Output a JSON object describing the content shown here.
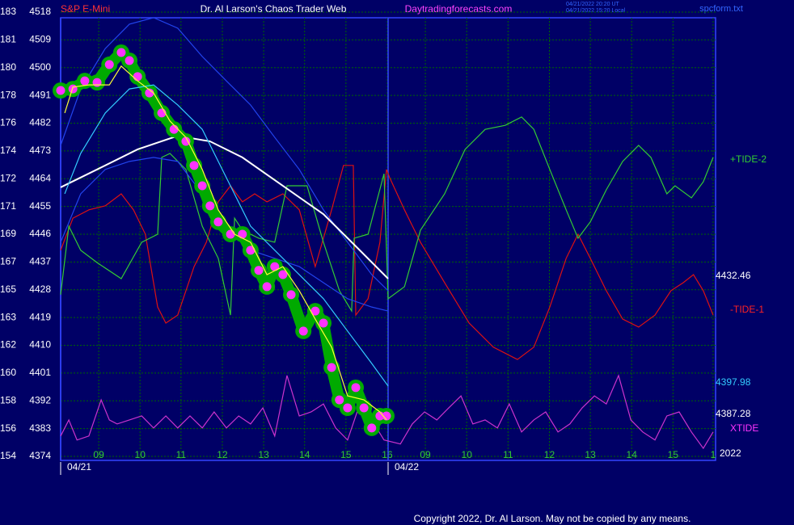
{
  "chart_data": {
    "type": "line",
    "title": "Dr. Al Larson's Chaos Trader Web",
    "instrument": "S&P E-Mini",
    "website": "Daytradingforecasts.com",
    "timestamps": [
      "04/21/2022 20:20 UT",
      "04/21/2022 15:20 Local"
    ],
    "file": "spcform.txt",
    "copyright": "Copyright 2022, Dr. Al Larson. May not be copied by any means.",
    "grid": true,
    "ylim": [
      4374,
      4518
    ],
    "yticks": [
      4374,
      4383,
      4392,
      4401,
      4410,
      4419,
      4428,
      4437,
      4446,
      4455,
      4464,
      4473,
      4482,
      4491,
      4500,
      4509,
      4518
    ],
    "y2lim": [
      154.3,
      183.3
    ],
    "y2ticks": [
      {
        "value": 154.3,
        "label": "154"
      },
      {
        "value": 156.11,
        "label": "156"
      },
      {
        "value": 157.93,
        "label": "158"
      },
      {
        "value": 159.74,
        "label": "160"
      },
      {
        "value": 161.55,
        "label": "162"
      },
      {
        "value": 163.36,
        "label": "163"
      },
      {
        "value": 165.18,
        "label": "165"
      },
      {
        "value": 166.99,
        "label": "167"
      },
      {
        "value": 168.8,
        "label": "169"
      },
      {
        "value": 170.61,
        "label": "171"
      },
      {
        "value": 172.43,
        "label": "172"
      },
      {
        "value": 174.24,
        "label": "174"
      },
      {
        "value": 176.05,
        "label": "176"
      },
      {
        "value": 177.86,
        "label": "178"
      },
      {
        "value": 179.68,
        "label": "180"
      },
      {
        "value": 181.49,
        "label": "181"
      },
      {
        "value": 183.3,
        "label": "183"
      }
    ],
    "xlim": [
      0,
      16
    ],
    "xticks": [
      {
        "value": 0.93,
        "label": "09"
      },
      {
        "value": 1.94,
        "label": "10"
      },
      {
        "value": 2.94,
        "label": "11"
      },
      {
        "value": 3.95,
        "label": "12"
      },
      {
        "value": 4.96,
        "label": "13"
      },
      {
        "value": 5.96,
        "label": "14"
      },
      {
        "value": 6.97,
        "label": "15"
      },
      {
        "value": 7.98,
        "label": "16"
      },
      {
        "value": 8.91,
        "label": "09"
      },
      {
        "value": 9.92,
        "label": "10"
      },
      {
        "value": 10.93,
        "label": "11"
      },
      {
        "value": 11.94,
        "label": "12"
      },
      {
        "value": 12.94,
        "label": "13"
      },
      {
        "value": 13.95,
        "label": "14"
      },
      {
        "value": 14.96,
        "label": "15"
      },
      {
        "value": 15.94,
        "label": "1"
      }
    ],
    "days": [
      {
        "value": 0,
        "label": "04/21"
      },
      {
        "value": 8,
        "label": "04/22"
      }
    ],
    "annotations": [
      {
        "text": "+TIDE-2",
        "color": "#33cc33"
      },
      {
        "text": "4432.46",
        "color": "#ffffff"
      },
      {
        "text": "-TIDE-1",
        "color": "#ff2222"
      },
      {
        "text": "4397.98",
        "color": "#33ccff"
      },
      {
        "text": "4387.28",
        "color": "#ffffff"
      },
      {
        "text": "XTIDE",
        "color": "#ff33ff"
      },
      {
        "text": "2022",
        "color": "#ffffff"
      }
    ],
    "series": [
      {
        "name": "XTIDE",
        "color": "#cc33cc",
        "x": [
          0,
          0.2,
          0.4,
          0.69,
          0.99,
          1.19,
          1.38,
          1.68,
          1.98,
          2.27,
          2.57,
          2.86,
          3.16,
          3.46,
          3.75,
          4.05,
          4.35,
          4.64,
          4.94,
          5.23,
          5.53,
          5.83,
          6.12,
          6.42,
          6.72,
          7.01,
          7.31,
          7.6,
          7.9,
          8.3,
          8.59,
          8.89,
          9.19,
          9.48,
          9.78,
          10.07,
          10.37,
          10.67,
          10.96,
          11.26,
          11.56,
          11.85,
          12.15,
          12.44,
          12.74,
          13.04,
          13.33,
          13.63,
          13.93,
          14.22,
          14.52,
          14.81,
          15.11,
          15.41,
          15.7,
          15.94
        ],
        "values": [
          4380.6,
          4385.8,
          4379.3,
          4380.6,
          4392.3,
          4385.8,
          4384.5,
          4385.8,
          4387.1,
          4383.2,
          4387.1,
          4383.2,
          4387.1,
          4383.2,
          4388.4,
          4383.2,
          4387.1,
          4384.5,
          4389.7,
          4380.6,
          4400.2,
          4387.1,
          4388.4,
          4391.0,
          4383.2,
          4379.3,
          4391.0,
          4385.8,
          4379.3,
          4378.0,
          4384.5,
          4388.4,
          4385.8,
          4389.7,
          4393.6,
          4384.5,
          4385.8,
          4383.2,
          4391.0,
          4381.9,
          4385.8,
          4388.4,
          4381.9,
          4384.5,
          4389.7,
          4393.6,
          4391.0,
          4400.2,
          4385.8,
          4381.9,
          4379.3,
          4387.1,
          4388.4,
          4381.9,
          4376.6,
          4381.9
        ]
      },
      {
        "name": "TIDE-1",
        "color": "#dd1111",
        "x": [
          0,
          0.3,
          0.69,
          1.09,
          1.48,
          1.78,
          2.07,
          2.37,
          2.57,
          2.86,
          3.26,
          3.56,
          3.85,
          4.15,
          4.44,
          4.74,
          5.04,
          5.43,
          5.83,
          6.22,
          6.62,
          6.91,
          7.15,
          7.21,
          7.51,
          7.8,
          7.96,
          8.04,
          8.4,
          8.79,
          9.38,
          9.98,
          10.57,
          11.16,
          11.56,
          11.95,
          12.35,
          12.64,
          12.94,
          13.33,
          13.73,
          14.12,
          14.52,
          14.91,
          15.21,
          15.46,
          15.7,
          15.94
        ],
        "values": [
          4440.8,
          4451.2,
          4453.9,
          4455.2,
          4459.1,
          4453.9,
          4446.0,
          4422.4,
          4417.2,
          4419.8,
          4435.5,
          4443.4,
          4456.5,
          4461.7,
          4456.5,
          4459.1,
          4456.5,
          4459.1,
          4453.9,
          4435.5,
          4453.9,
          4468.3,
          4468.3,
          4419.8,
          4425.1,
          4443.4,
          4467.0,
          4464.3,
          4453.9,
          4443.4,
          4430.3,
          4417.2,
          4409.4,
          4405.4,
          4409.4,
          4422.4,
          4438.2,
          4446.0,
          4438.2,
          4427.7,
          4418.5,
          4415.9,
          4419.8,
          4427.7,
          4430.3,
          4432.9,
          4427.7,
          4419.8
        ]
      },
      {
        "name": "TIDE-2",
        "color": "#33cc33",
        "x": [
          0,
          0.2,
          0.49,
          0.89,
          1.48,
          1.98,
          2.37,
          2.47,
          2.67,
          3.06,
          3.46,
          3.85,
          4.15,
          4.25,
          4.44,
          4.84,
          5.23,
          5.53,
          6.02,
          6.42,
          6.81,
          7.11,
          7.17,
          7.51,
          7.9,
          8.0,
          8.4,
          8.79,
          9.38,
          9.88,
          10.37,
          10.86,
          11.26,
          11.56,
          11.95,
          12.35,
          12.64,
          12.94,
          13.33,
          13.73,
          14.12,
          14.42,
          14.81,
          15.01,
          15.41,
          15.7,
          15.94
        ],
        "values": [
          4426.4,
          4448.6,
          4440.8,
          4436.8,
          4431.6,
          4443.4,
          4446.0,
          4470.9,
          4472.2,
          4467.0,
          4448.6,
          4438.2,
          4419.8,
          4451.2,
          4447.3,
          4444.7,
          4443.4,
          4461.7,
          4461.7,
          4443.4,
          4427.7,
          4421.1,
          4444.7,
          4446.0,
          4465.6,
          4425.1,
          4429.0,
          4447.3,
          4459.1,
          4473.5,
          4480.0,
          4481.3,
          4484.0,
          4480.0,
          4467.0,
          4453.9,
          4444.7,
          4450.0,
          4460.4,
          4469.6,
          4474.8,
          4470.9,
          4459.1,
          4461.7,
          4457.8,
          4463.0,
          4470.9
        ]
      },
      {
        "name": "Upper band",
        "color": "#2244ee",
        "x": [
          0,
          0.49,
          1.09,
          1.68,
          2.27,
          2.86,
          3.46,
          4.05,
          4.64,
          5.23,
          5.83,
          6.42,
          7.01,
          7.6,
          8.0
        ],
        "values": [
          4474.8,
          4493.1,
          4506.2,
          4514.1,
          4516.2,
          4512.8,
          4503.6,
          4495.7,
          4487.9,
          4477.4,
          4467.0,
          4453.9,
          4443.4,
          4432.9,
          4427.7
        ]
      },
      {
        "name": "Lower band",
        "color": "#2244ee",
        "x": [
          0,
          0.49,
          1.09,
          1.68,
          2.27,
          2.86,
          3.46,
          4.05,
          4.64,
          5.23,
          5.83,
          6.42,
          7.01,
          7.6,
          8.0
        ],
        "values": [
          4443.4,
          4459.1,
          4467.0,
          4469.6,
          4470.9,
          4469.6,
          4459.1,
          4448.6,
          4440.8,
          4438.2,
          4435.5,
          4430.3,
          4425.1,
          4422.4,
          4421.1
        ]
      },
      {
        "name": "Slow average",
        "color": "#ffffff",
        "x": [
          0,
          0.89,
          1.88,
          2.86,
          3.65,
          4.44,
          5.43,
          6.42,
          7.21,
          8.0
        ],
        "values": [
          4461.2,
          4467.0,
          4473.5,
          4477.9,
          4476.1,
          4470.9,
          4461.7,
          4452.5,
          4442.1,
          4431.6
        ]
      },
      {
        "name": "Price",
        "color": "#ff33ff",
        "glow": "#00aa00",
        "marker": true,
        "x": [
          0,
          0.3,
          0.59,
          0.89,
          1.19,
          1.48,
          1.68,
          1.88,
          2.17,
          2.47,
          2.77,
          3.06,
          3.26,
          3.46,
          3.65,
          3.85,
          4.15,
          4.44,
          4.64,
          4.84,
          5.04,
          5.23,
          5.43,
          5.63,
          5.93,
          6.22,
          6.42,
          6.62,
          6.81,
          7.01,
          7.21,
          7.41,
          7.6,
          7.8,
          7.96
        ],
        "values": [
          4492.6,
          4493.1,
          4495.7,
          4495.2,
          4501.0,
          4504.9,
          4502.3,
          4497.1,
          4491.8,
          4485.3,
          4480.0,
          4476.1,
          4468.3,
          4461.7,
          4455.2,
          4450.0,
          4446.0,
          4446.0,
          4440.8,
          4434.3,
          4429.0,
          4435.5,
          4432.9,
          4426.4,
          4414.6,
          4421.1,
          4417.2,
          4402.8,
          4392.3,
          4389.7,
          4396.3,
          4389.7,
          4383.2,
          4387.1,
          4387.1
        ]
      },
      {
        "name": "Fast average",
        "color": "#33ccff",
        "x": [
          0.1,
          0.49,
          1.09,
          1.68,
          2.27,
          2.86,
          3.46,
          4.05,
          4.64,
          5.23,
          5.83,
          6.42,
          7.01,
          7.6,
          8.0
        ],
        "values": [
          4459.1,
          4472.2,
          4485.3,
          4493.1,
          4494.4,
          4487.9,
          4480.0,
          4464.3,
          4448.6,
          4440.8,
          4432.9,
          4425.1,
          4414.6,
          4404.1,
          4396.8
        ]
      },
      {
        "name": "Smoothed price",
        "color": "#ffff33",
        "x": [
          0.1,
          0.3,
          0.69,
          1.19,
          1.48,
          1.88,
          2.27,
          2.67,
          3.06,
          3.46,
          3.85,
          4.25,
          4.64,
          5.04,
          5.43,
          5.83,
          6.22,
          6.62,
          7.01,
          7.41,
          7.8,
          7.96
        ],
        "values": [
          4485.3,
          4493.7,
          4494.4,
          4494.4,
          4500.5,
          4495.7,
          4491.8,
          4482.7,
          4477.4,
          4467.0,
          4453.9,
          4446.0,
          4443.4,
          4432.9,
          4435.5,
          4427.7,
          4418.5,
          4409.4,
          4393.6,
          4392.3,
          4388.4,
          4385.8
        ]
      }
    ]
  }
}
